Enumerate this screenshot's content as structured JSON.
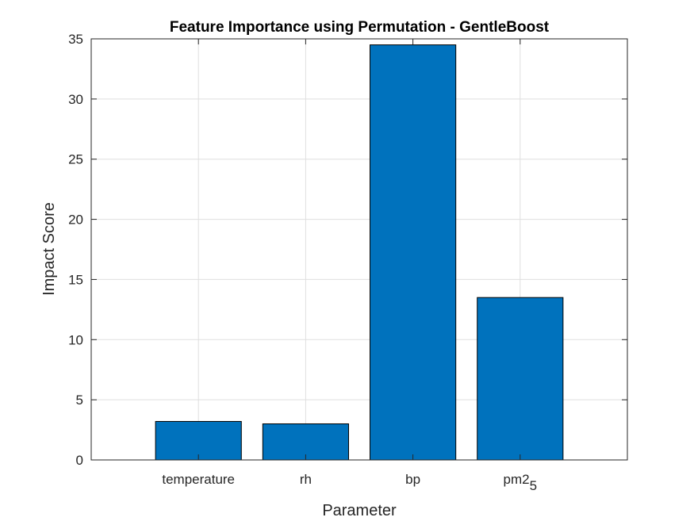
{
  "chart_data": {
    "type": "bar",
    "title": "Feature Importance using Permutation - GentleBoost",
    "xlabel": "Parameter",
    "ylabel": "Impact Score",
    "categories": [
      {
        "base": "temperature",
        "sub": ""
      },
      {
        "base": "rh",
        "sub": ""
      },
      {
        "base": "bp",
        "sub": ""
      },
      {
        "base": "pm2",
        "sub": "5"
      }
    ],
    "values": [
      3.2,
      3.0,
      34.5,
      13.5
    ],
    "ylim": [
      0,
      35
    ],
    "yticks": [
      0,
      5,
      10,
      15,
      20,
      25,
      30,
      35
    ],
    "xlim": [
      0,
      5
    ],
    "grid": true,
    "bar_color": "#0072BD",
    "bar_edge_color": "#000000"
  }
}
